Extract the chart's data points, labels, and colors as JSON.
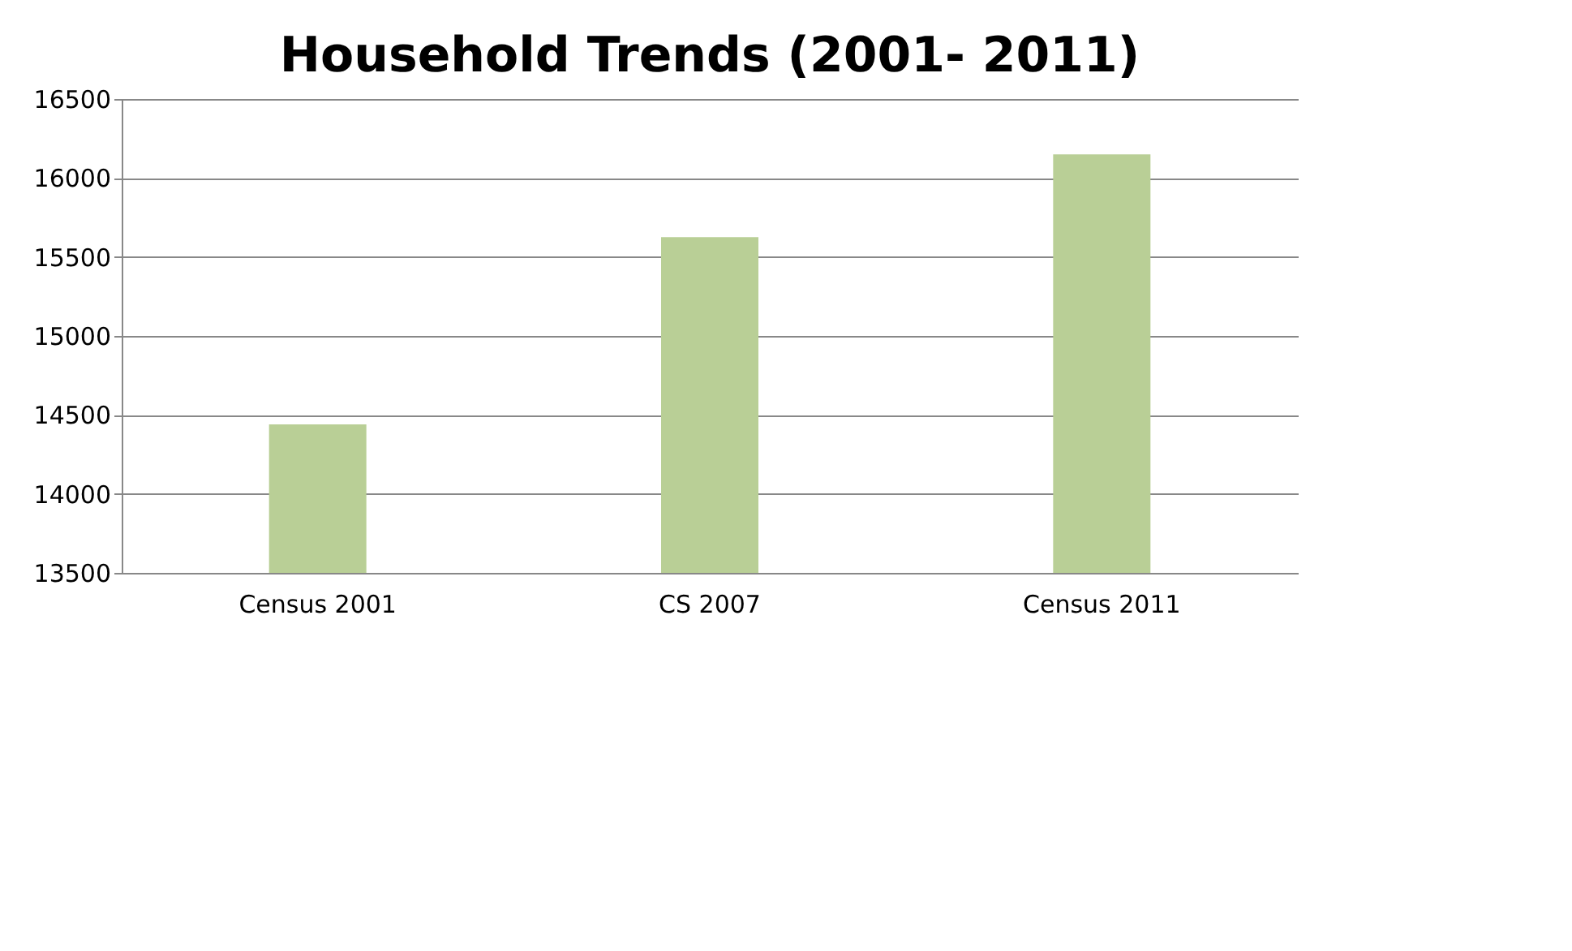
{
  "chart_data": {
    "type": "bar",
    "title": "Household Trends (2001- 2011)",
    "categories": [
      "Census 2001",
      "CS 2007",
      "Census 2011"
    ],
    "values": [
      14440,
      15625,
      16150
    ],
    "color": "#b9cf96",
    "ylim": [
      13500,
      16500
    ],
    "yticks": [
      13500,
      14000,
      14500,
      15000,
      15500,
      16000,
      16500
    ],
    "grid": "y"
  }
}
